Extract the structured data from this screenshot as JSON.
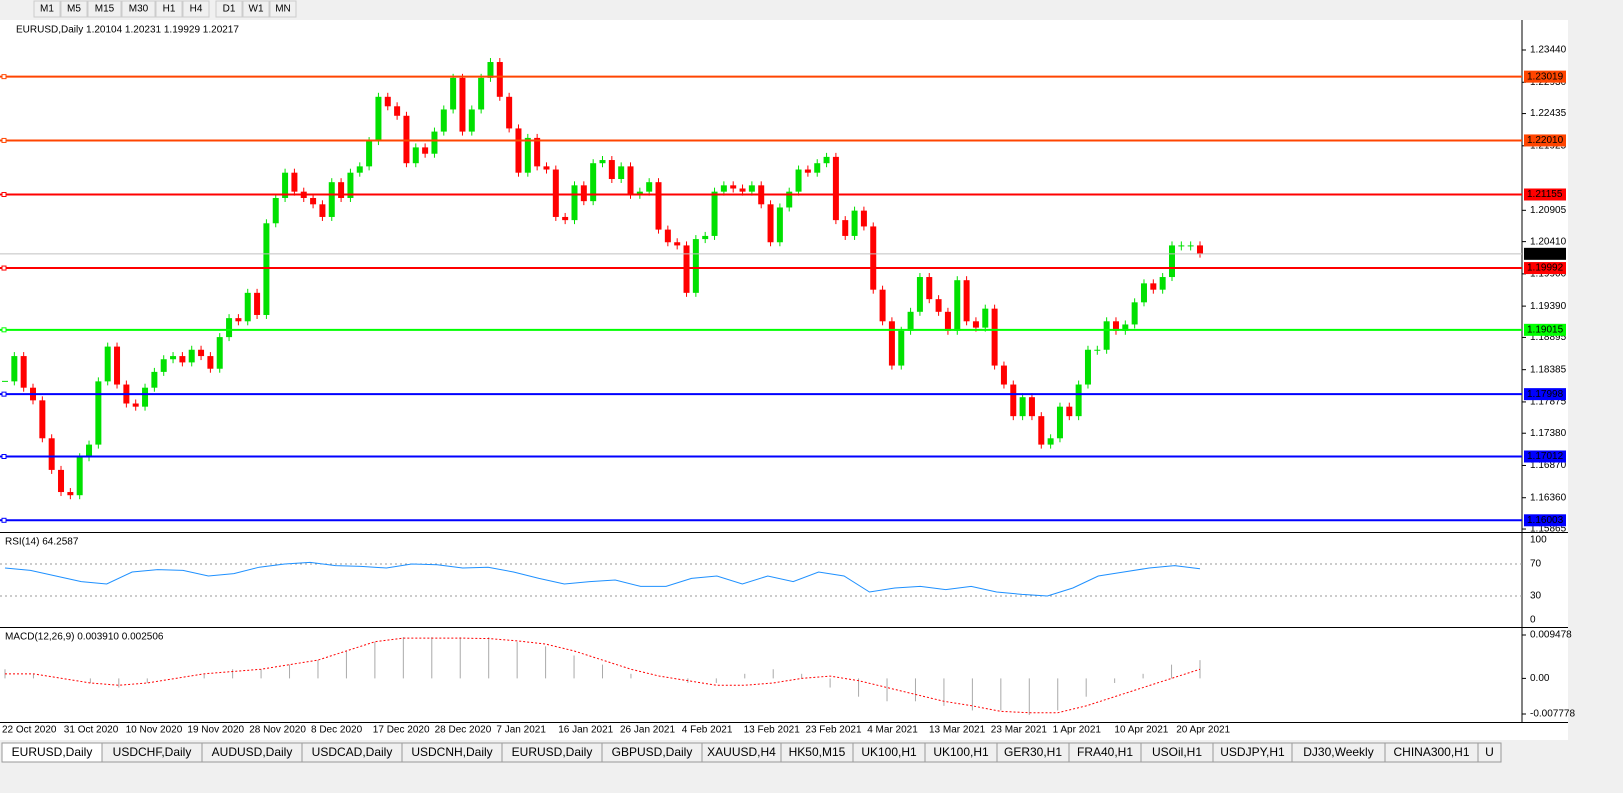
{
  "toolbar": {
    "timeframes": [
      "M1",
      "M5",
      "M15",
      "M30",
      "H1",
      "H4",
      "D1",
      "W1",
      "MN"
    ]
  },
  "chart": {
    "header": "EURUSD,Daily  1.20104 1.20231 1.19929 1.20217",
    "ylim": [
      1.15818,
      1.23883
    ],
    "price_ticks": [
      {
        "value": 1.2344,
        "label": "1.23440"
      },
      {
        "value": 1.2293,
        "label": "1.22930"
      },
      {
        "value": 1.22435,
        "label": "1.22435"
      },
      {
        "value": 1.21925,
        "label": "1.21925"
      },
      {
        "value": 1.20905,
        "label": "1.20905"
      },
      {
        "value": 1.2041,
        "label": "1.20410"
      },
      {
        "value": 1.199,
        "label": "1.19900"
      },
      {
        "value": 1.1939,
        "label": "1.19390"
      },
      {
        "value": 1.18895,
        "label": "1.18895"
      },
      {
        "value": 1.18385,
        "label": "1.18385"
      },
      {
        "value": 1.17875,
        "label": "1.17875"
      },
      {
        "value": 1.1738,
        "label": "1.17380"
      },
      {
        "value": 1.1687,
        "label": "1.16870"
      },
      {
        "value": 1.1636,
        "label": "1.16360"
      },
      {
        "value": 1.15865,
        "label": "1.15865"
      }
    ],
    "levels": [
      {
        "value": 1.23019,
        "label": "1.23019",
        "color": "#ff4500"
      },
      {
        "value": 1.2201,
        "label": "1.22010",
        "color": "#ff4500"
      },
      {
        "value": 1.21155,
        "label": "1.21155",
        "color": "#ff0000"
      },
      {
        "value": 1.19992,
        "label": "1.19992",
        "color": "#ff0000"
      },
      {
        "value": 1.19015,
        "label": "1.19015",
        "color": "#00ff00"
      },
      {
        "value": 1.17998,
        "label": "1.17998",
        "color": "#0000ff"
      },
      {
        "value": 1.17012,
        "label": "1.17012",
        "color": "#0000ff"
      },
      {
        "value": 1.16003,
        "label": "1.16003",
        "color": "#0000ff"
      }
    ],
    "current_price": {
      "value": 1.20217,
      "label": "1.20217"
    },
    "closes": [
      1.182,
      1.186,
      1.181,
      1.179,
      1.173,
      1.168,
      1.1645,
      1.164,
      1.17,
      1.172,
      1.182,
      1.1875,
      1.1815,
      1.1785,
      1.178,
      1.181,
      1.1835,
      1.1855,
      1.186,
      1.185,
      1.187,
      1.186,
      1.184,
      1.189,
      1.192,
      1.1915,
      1.196,
      1.1925,
      1.207,
      1.211,
      1.215,
      1.212,
      1.211,
      1.21,
      1.208,
      1.2135,
      1.211,
      1.215,
      1.216,
      1.22,
      1.227,
      1.2255,
      1.224,
      1.2165,
      1.219,
      1.218,
      1.2215,
      1.225,
      1.23,
      1.2215,
      1.225,
      1.23,
      1.2325,
      1.227,
      1.222,
      1.215,
      1.2205,
      1.216,
      1.2155,
      1.208,
      1.2075,
      1.213,
      1.2105,
      1.2165,
      1.217,
      1.214,
      1.216,
      1.2115,
      1.212,
      1.2135,
      1.206,
      1.204,
      1.2035,
      1.196,
      1.2045,
      1.205,
      1.212,
      1.213,
      1.2125,
      1.212,
      1.213,
      1.21,
      1.204,
      1.2095,
      1.212,
      1.2155,
      1.215,
      1.2165,
      1.2175,
      1.2075,
      1.205,
      1.209,
      1.2065,
      1.1965,
      1.1915,
      1.1845,
      1.19,
      1.193,
      1.1985,
      1.195,
      1.193,
      1.19,
      1.198,
      1.1915,
      1.1905,
      1.1935,
      1.1845,
      1.1815,
      1.1765,
      1.1795,
      1.1765,
      1.172,
      1.173,
      1.178,
      1.1765,
      1.1815,
      1.187,
      1.187,
      1.1915,
      1.19,
      1.191,
      1.1945,
      1.1975,
      1.1965,
      1.1985,
      1.2035,
      1.2035,
      1.2035,
      1.2022
    ],
    "dates": [
      "22 Oct 2020",
      "31 Oct 2020",
      "10 Nov 2020",
      "19 Nov 2020",
      "28 Nov 2020",
      "8 Dec 2020",
      "17 Dec 2020",
      "28 Dec 2020",
      "7 Jan 2021",
      "16 Jan 2021",
      "26 Jan 2021",
      "4 Feb 2021",
      "13 Feb 2021",
      "23 Feb 2021",
      "4 Mar 2021",
      "13 Mar 2021",
      "23 Mar 2021",
      "1 Apr 2021",
      "10 Apr 2021",
      "20 Apr 2021"
    ]
  },
  "rsi": {
    "header": "RSI(14) 64.2587",
    "ticks": [
      100,
      70,
      30,
      0
    ],
    "values": [
      65,
      62,
      55,
      48,
      45,
      60,
      63,
      62,
      55,
      58,
      66,
      70,
      72,
      68,
      67,
      65,
      70,
      69,
      65,
      66,
      60,
      52,
      45,
      48,
      50,
      42,
      42,
      52,
      55,
      45,
      55,
      48,
      60,
      55,
      35,
      40,
      42,
      38,
      42,
      35,
      32,
      30,
      40,
      55,
      60,
      65,
      68,
      64
    ]
  },
  "macd": {
    "header": "MACD(12,26,9) 0.003910 0.002506",
    "ticks": [
      0.009478,
      {
        "value": 0,
        "label": "0.00"
      },
      -0.007778
    ],
    "histogram": [
      0.002,
      0.001,
      0,
      -0.001,
      -0.002,
      -0.001,
      0,
      0.001,
      0.002,
      0.002,
      0.003,
      0.004,
      0.006,
      0.008,
      0.009,
      0.009,
      0.009,
      0.009,
      0.008,
      0.007,
      0.005,
      0.003,
      0.001,
      0,
      -0.001,
      -0.001,
      0.001,
      0.002,
      0.001,
      -0.002,
      -0.004,
      -0.005,
      -0.005,
      -0.006,
      -0.007,
      -0.007,
      -0.008,
      -0.007,
      -0.004,
      -0.001,
      0.001,
      0.003,
      0.004
    ],
    "signal": [
      0.001,
      0.001,
      0,
      -0.001,
      -0.0015,
      -0.001,
      0,
      0.001,
      0.0015,
      0.002,
      0.003,
      0.004,
      0.006,
      0.008,
      0.0088,
      0.0088,
      0.0088,
      0.0087,
      0.0082,
      0.0075,
      0.006,
      0.004,
      0.002,
      0.0005,
      -0.0005,
      -0.0015,
      -0.0015,
      -0.001,
      0,
      0.0005,
      -0.0005,
      -0.002,
      -0.0035,
      -0.005,
      -0.006,
      -0.0072,
      -0.0075,
      -0.0075,
      -0.006,
      -0.004,
      -0.002,
      0,
      0.002
    ]
  },
  "tabs": [
    "EURUSD,Daily",
    "USDCHF,Daily",
    "AUDUSD,Daily",
    "USDCAD,Daily",
    "USDCNH,Daily",
    "EURUSD,Daily",
    "GBPUSD,Daily",
    "XAUUSD,H4",
    "HK50,M15",
    "UK100,H1",
    "UK100,H1",
    "GER30,H1",
    "FRA40,H1",
    "USOil,H1",
    "USDJPY,H1",
    "DJ30,Weekly",
    "CHINA300,H1",
    "U"
  ]
}
